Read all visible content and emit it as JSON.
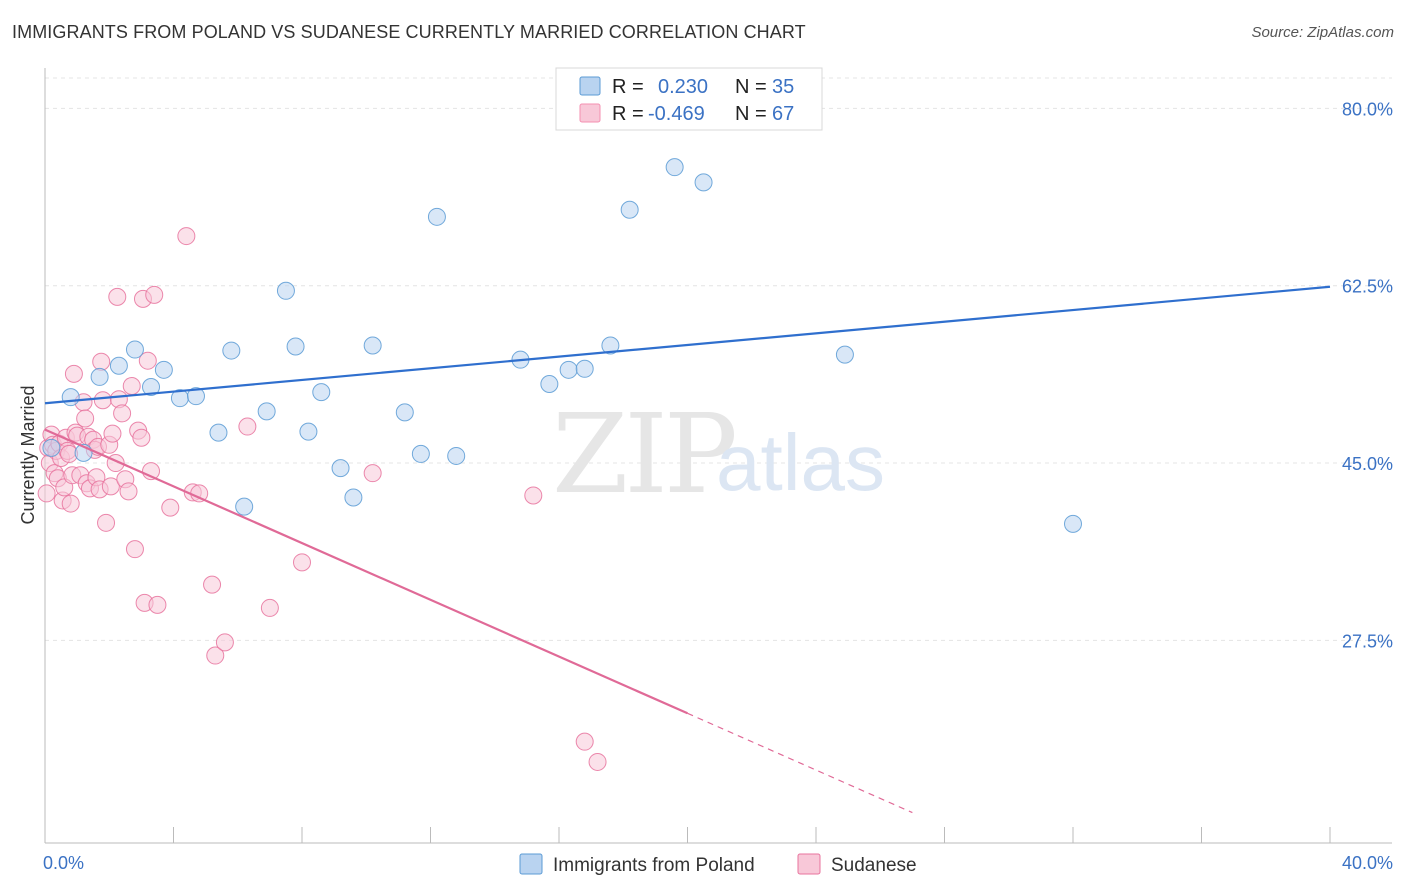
{
  "title": "IMMIGRANTS FROM POLAND VS SUDANESE CURRENTLY MARRIED CORRELATION CHART",
  "source": "Source: ZipAtlas.com",
  "watermark": {
    "zip": "ZIP",
    "atlas": "atlas"
  },
  "legend_top": {
    "rows": [
      {
        "r_label": "R =",
        "r_value": "0.230",
        "n_label": "N =",
        "n_value": "35",
        "color": "#5b9bd5"
      },
      {
        "r_label": "R =",
        "r_value": "-0.469",
        "n_label": "N =",
        "n_value": "67",
        "color": "#f48fb1"
      }
    ]
  },
  "chart_data": {
    "type": "scatter",
    "title": "IMMIGRANTS FROM POLAND VS SUDANESE CURRENTLY MARRIED CORRELATION CHART",
    "xlabel": "",
    "ylabel": "Currently Married",
    "xlim": [
      0,
      40
    ],
    "ylim": [
      7.5,
      83
    ],
    "x_tick_labels": [
      "0.0%",
      "40.0%"
    ],
    "y_ticks": [
      27.5,
      45.0,
      62.5,
      80.0
    ],
    "y_tick_labels": [
      "27.5%",
      "45.0%",
      "62.5%",
      "80.0%"
    ],
    "grid": true,
    "legend_placement": "top-center",
    "series": [
      {
        "name": "Immigrants from Poland",
        "color": "#5b9bd5",
        "fill": "#b9d3f0",
        "trend": {
          "x0": 0,
          "y0": 50.9,
          "x1": 40,
          "y1": 62.4,
          "dashed_from": null
        },
        "points": [
          [
            0.2,
            46.5
          ],
          [
            0.8,
            51.5
          ],
          [
            1.2,
            46.0
          ],
          [
            1.7,
            53.5
          ],
          [
            2.3,
            54.6
          ],
          [
            2.8,
            56.2
          ],
          [
            3.3,
            52.5
          ],
          [
            3.7,
            54.2
          ],
          [
            4.2,
            51.4
          ],
          [
            4.7,
            51.6
          ],
          [
            5.4,
            48.0
          ],
          [
            5.8,
            56.1
          ],
          [
            6.2,
            40.7
          ],
          [
            6.9,
            50.1
          ],
          [
            7.5,
            62.0
          ],
          [
            7.8,
            56.5
          ],
          [
            8.2,
            48.1
          ],
          [
            8.6,
            52.0
          ],
          [
            9.2,
            44.5
          ],
          [
            9.6,
            41.6
          ],
          [
            10.2,
            56.6
          ],
          [
            11.2,
            50.0
          ],
          [
            11.7,
            45.9
          ],
          [
            12.2,
            69.3
          ],
          [
            12.8,
            45.7
          ],
          [
            14.8,
            55.2
          ],
          [
            15.7,
            52.8
          ],
          [
            16.3,
            54.2
          ],
          [
            16.8,
            54.3
          ],
          [
            17.6,
            56.6
          ],
          [
            18.2,
            70.0
          ],
          [
            19.6,
            74.2
          ],
          [
            20.5,
            72.7
          ],
          [
            24.9,
            55.7
          ],
          [
            32.0,
            39.0
          ]
        ]
      },
      {
        "name": "Sudanese",
        "color": "#e8739e",
        "fill": "#f8c8d8",
        "trend": {
          "x0": 0,
          "y0": 48.3,
          "x1": 20.0,
          "y1": 20.3,
          "dashed_to_x": 27.0,
          "dashed_to_y": 10.5
        },
        "points": [
          [
            0.05,
            42.0
          ],
          [
            0.1,
            46.5
          ],
          [
            0.15,
            45.0
          ],
          [
            0.2,
            47.8
          ],
          [
            0.25,
            46.8
          ],
          [
            0.3,
            44.0
          ],
          [
            0.35,
            46.2
          ],
          [
            0.4,
            43.5
          ],
          [
            0.45,
            46.9
          ],
          [
            0.5,
            45.5
          ],
          [
            0.55,
            41.3
          ],
          [
            0.6,
            42.6
          ],
          [
            0.65,
            47.5
          ],
          [
            0.7,
            46.2
          ],
          [
            0.75,
            45.9
          ],
          [
            0.8,
            41.0
          ],
          [
            0.85,
            43.8
          ],
          [
            0.9,
            53.8
          ],
          [
            0.95,
            48.0
          ],
          [
            1.0,
            47.7
          ],
          [
            1.1,
            43.8
          ],
          [
            1.2,
            51.0
          ],
          [
            1.25,
            49.4
          ],
          [
            1.3,
            43.0
          ],
          [
            1.35,
            47.6
          ],
          [
            1.4,
            42.5
          ],
          [
            1.5,
            47.3
          ],
          [
            1.55,
            46.3
          ],
          [
            1.6,
            43.6
          ],
          [
            1.65,
            46.6
          ],
          [
            1.7,
            42.4
          ],
          [
            1.75,
            55.0
          ],
          [
            1.8,
            51.2
          ],
          [
            1.9,
            39.1
          ],
          [
            2.0,
            46.8
          ],
          [
            2.05,
            42.7
          ],
          [
            2.1,
            47.9
          ],
          [
            2.2,
            45.0
          ],
          [
            2.25,
            61.4
          ],
          [
            2.3,
            51.3
          ],
          [
            2.4,
            49.9
          ],
          [
            2.5,
            43.4
          ],
          [
            2.6,
            42.2
          ],
          [
            2.7,
            52.6
          ],
          [
            2.8,
            36.5
          ],
          [
            2.9,
            48.2
          ],
          [
            3.0,
            47.5
          ],
          [
            3.05,
            61.2
          ],
          [
            3.1,
            31.2
          ],
          [
            3.2,
            55.1
          ],
          [
            3.3,
            44.2
          ],
          [
            3.4,
            61.6
          ],
          [
            3.5,
            31.0
          ],
          [
            3.9,
            40.6
          ],
          [
            4.4,
            67.4
          ],
          [
            4.6,
            42.1
          ],
          [
            4.8,
            42.0
          ],
          [
            5.2,
            33.0
          ],
          [
            5.3,
            26.0
          ],
          [
            5.6,
            27.3
          ],
          [
            6.3,
            48.6
          ],
          [
            7.0,
            30.7
          ],
          [
            8.0,
            35.2
          ],
          [
            10.2,
            44.0
          ],
          [
            15.2,
            41.8
          ],
          [
            16.8,
            17.5
          ],
          [
            17.2,
            15.5
          ]
        ]
      }
    ]
  },
  "bottom_legend": {
    "items": [
      {
        "label": "Immigrants from Poland",
        "color": "#5b9bd5",
        "fill": "#b9d3f0"
      },
      {
        "label": "Sudanese",
        "color": "#e8739e",
        "fill": "#f8c8d8"
      }
    ]
  }
}
